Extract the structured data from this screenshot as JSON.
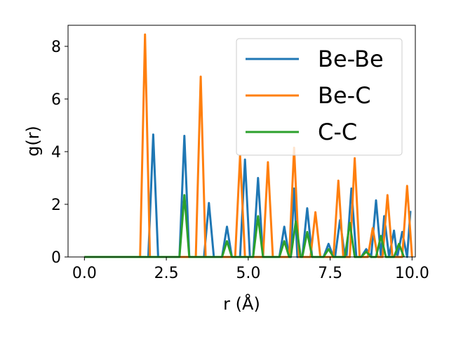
{
  "chart_data": {
    "type": "line",
    "title": "",
    "xlabel": "r (Å)",
    "ylabel": "g(r)",
    "xlim": [
      -0.5,
      10.1
    ],
    "ylim": [
      0,
      8.8
    ],
    "xticks": [
      "0.0",
      "2.5",
      "5.0",
      "7.5",
      "10.0"
    ],
    "xtick_values": [
      0,
      2.5,
      5,
      7.5,
      10
    ],
    "yticks": [
      "0",
      "2",
      "4",
      "6",
      "8"
    ],
    "ytick_values": [
      0,
      2,
      4,
      6,
      8
    ],
    "grid": false,
    "legend_position": "top-right",
    "series": [
      {
        "name": "Be-Be",
        "color": "#1f77b4",
        "x": [
          0.0,
          1.95,
          2.1,
          2.25,
          2.9,
          3.05,
          3.2,
          3.65,
          3.8,
          3.95,
          4.2,
          4.35,
          4.5,
          4.75,
          4.9,
          5.05,
          5.15,
          5.3,
          5.45,
          5.95,
          6.1,
          6.25,
          6.3,
          6.4,
          6.5,
          6.65,
          6.8,
          6.95,
          7.3,
          7.45,
          7.6,
          7.65,
          7.8,
          7.95,
          8.0,
          8.15,
          8.3,
          8.45,
          8.6,
          8.75,
          8.9,
          9.05,
          9.15,
          9.3,
          9.45,
          9.55,
          9.7,
          9.85,
          9.95
        ],
        "y": [
          0.0,
          0.0,
          4.65,
          0.0,
          0.0,
          4.6,
          0.0,
          0.0,
          2.05,
          0.0,
          0.0,
          1.15,
          0.0,
          0.0,
          3.7,
          0.0,
          0.0,
          3.0,
          0.0,
          0.0,
          1.15,
          0.0,
          0.0,
          2.6,
          0.0,
          0.0,
          1.85,
          0.0,
          0.0,
          0.5,
          0.0,
          0.0,
          1.4,
          0.0,
          0.0,
          2.6,
          0.0,
          0.0,
          0.3,
          0.0,
          2.15,
          0.0,
          1.55,
          0.0,
          1.0,
          0.0,
          0.95,
          0.0,
          1.75
        ]
      },
      {
        "name": "Be-C",
        "color": "#ff7f0e",
        "x": [
          0.0,
          1.7,
          1.85,
          2.0,
          3.4,
          3.55,
          3.7,
          4.6,
          4.75,
          4.9,
          5.45,
          5.6,
          5.75,
          6.25,
          6.4,
          6.55,
          6.9,
          7.05,
          7.2,
          7.6,
          7.75,
          7.9,
          8.1,
          8.25,
          8.4,
          8.65,
          8.8,
          8.95,
          9.1,
          9.25,
          9.4,
          9.55,
          9.7,
          9.85,
          10.0
        ],
        "y": [
          0.0,
          0.0,
          8.45,
          0.0,
          0.0,
          6.85,
          0.0,
          0.0,
          3.85,
          0.0,
          0.0,
          3.6,
          0.0,
          0.0,
          4.15,
          0.0,
          0.0,
          1.7,
          0.0,
          0.0,
          2.9,
          0.0,
          0.0,
          3.75,
          0.0,
          0.0,
          1.1,
          0.0,
          0.0,
          2.35,
          0.0,
          0.0,
          0.0,
          2.7,
          0.0
        ]
      },
      {
        "name": "C-C",
        "color": "#2ca02c",
        "x": [
          0.0,
          2.9,
          3.05,
          3.2,
          4.2,
          4.35,
          4.5,
          5.15,
          5.3,
          5.45,
          5.95,
          6.1,
          6.25,
          6.3,
          6.45,
          6.6,
          6.65,
          6.8,
          6.95,
          7.3,
          7.45,
          7.6,
          7.95,
          8.1,
          8.25,
          8.45,
          8.6,
          8.75,
          8.9,
          9.05,
          9.2,
          9.45,
          9.6,
          9.75
        ],
        "y": [
          0.0,
          0.0,
          2.35,
          0.0,
          0.0,
          0.6,
          0.0,
          0.0,
          1.55,
          0.0,
          0.0,
          0.6,
          0.0,
          0.0,
          1.35,
          0.0,
          0.0,
          0.95,
          0.0,
          0.0,
          0.3,
          0.0,
          0.0,
          1.3,
          0.0,
          0.0,
          0.2,
          0.0,
          0.0,
          0.8,
          0.0,
          0.0,
          0.5,
          0.0
        ]
      }
    ]
  }
}
